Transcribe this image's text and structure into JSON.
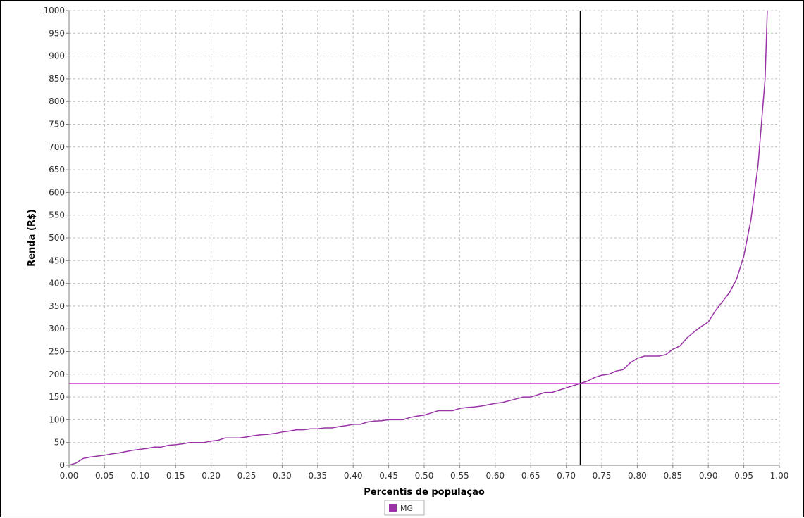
{
  "chart_data": {
    "type": "line",
    "title": "",
    "xlabel": "Percentis de população",
    "ylabel": "Renda (R$)",
    "xlim": [
      0.0,
      1.0
    ],
    "ylim": [
      0,
      1000
    ],
    "x_ticks": [
      "0.00",
      "0.05",
      "0.10",
      "0.15",
      "0.20",
      "0.25",
      "0.30",
      "0.35",
      "0.40",
      "0.45",
      "0.50",
      "0.55",
      "0.60",
      "0.65",
      "0.70",
      "0.75",
      "0.80",
      "0.85",
      "0.90",
      "0.95",
      "1.00"
    ],
    "y_ticks": [
      "0",
      "50",
      "100",
      "150",
      "200",
      "250",
      "300",
      "350",
      "400",
      "450",
      "500",
      "550",
      "600",
      "650",
      "700",
      "750",
      "800",
      "850",
      "900",
      "950",
      "1000"
    ],
    "grid": true,
    "legend": {
      "position": "bottom-center",
      "entries": [
        "MG"
      ]
    },
    "series": [
      {
        "name": "MG",
        "color": "#9933a6",
        "x": [
          0.0,
          0.01,
          0.02,
          0.03,
          0.04,
          0.05,
          0.06,
          0.07,
          0.08,
          0.09,
          0.1,
          0.11,
          0.12,
          0.13,
          0.14,
          0.15,
          0.16,
          0.17,
          0.18,
          0.19,
          0.2,
          0.21,
          0.22,
          0.23,
          0.24,
          0.25,
          0.26,
          0.27,
          0.28,
          0.29,
          0.3,
          0.31,
          0.32,
          0.33,
          0.34,
          0.35,
          0.36,
          0.37,
          0.38,
          0.39,
          0.4,
          0.41,
          0.42,
          0.43,
          0.44,
          0.45,
          0.46,
          0.47,
          0.48,
          0.49,
          0.5,
          0.51,
          0.52,
          0.53,
          0.54,
          0.55,
          0.56,
          0.57,
          0.58,
          0.59,
          0.6,
          0.61,
          0.62,
          0.63,
          0.64,
          0.65,
          0.66,
          0.67,
          0.68,
          0.69,
          0.7,
          0.71,
          0.72,
          0.73,
          0.74,
          0.75,
          0.76,
          0.77,
          0.78,
          0.79,
          0.8,
          0.81,
          0.82,
          0.83,
          0.84,
          0.85,
          0.86,
          0.87,
          0.88,
          0.89,
          0.9,
          0.91,
          0.92,
          0.93,
          0.94,
          0.95,
          0.96,
          0.97,
          0.98,
          0.983
        ],
        "values": [
          0,
          5,
          15,
          18,
          20,
          22,
          25,
          27,
          30,
          33,
          35,
          37,
          40,
          40,
          44,
          45,
          47,
          50,
          50,
          50,
          53,
          55,
          60,
          60,
          60,
          62,
          65,
          67,
          68,
          70,
          73,
          75,
          78,
          78,
          80,
          80,
          82,
          82,
          85,
          87,
          90,
          90,
          95,
          97,
          98,
          100,
          100,
          100,
          105,
          108,
          110,
          115,
          120,
          120,
          120,
          125,
          127,
          128,
          130,
          133,
          136,
          138,
          142,
          146,
          150,
          150,
          155,
          160,
          160,
          165,
          170,
          175,
          180,
          185,
          193,
          198,
          200,
          207,
          210,
          225,
          235,
          240,
          240,
          240,
          243,
          255,
          262,
          280,
          293,
          305,
          315,
          340,
          360,
          380,
          410,
          460,
          540,
          660,
          850,
          1000
        ]
      }
    ],
    "reference_lines": [
      {
        "orientation": "horizontal",
        "value": 180,
        "color": "#e066e0"
      },
      {
        "orientation": "vertical",
        "value": 0.72,
        "color": "#000000"
      }
    ]
  }
}
